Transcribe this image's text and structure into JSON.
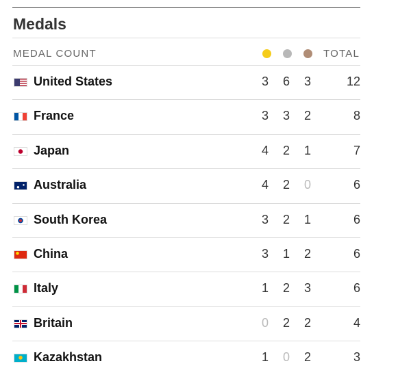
{
  "header": {
    "title": "Medals"
  },
  "table": {
    "columns": {
      "country": "MEDAL COUNT",
      "total": "TOTAL"
    },
    "rows": [
      [
        "United States",
        3,
        6,
        3,
        12
      ],
      [
        "France",
        3,
        3,
        2,
        8
      ],
      [
        "Japan",
        4,
        2,
        1,
        7
      ],
      [
        "Australia",
        4,
        2,
        0,
        6
      ],
      [
        "South Korea",
        3,
        2,
        1,
        6
      ],
      [
        "China",
        3,
        1,
        2,
        6
      ],
      [
        "Italy",
        1,
        2,
        3,
        6
      ],
      [
        "Britain",
        0,
        2,
        2,
        4
      ],
      [
        "Kazakhstan",
        1,
        0,
        2,
        3
      ]
    ]
  }
}
